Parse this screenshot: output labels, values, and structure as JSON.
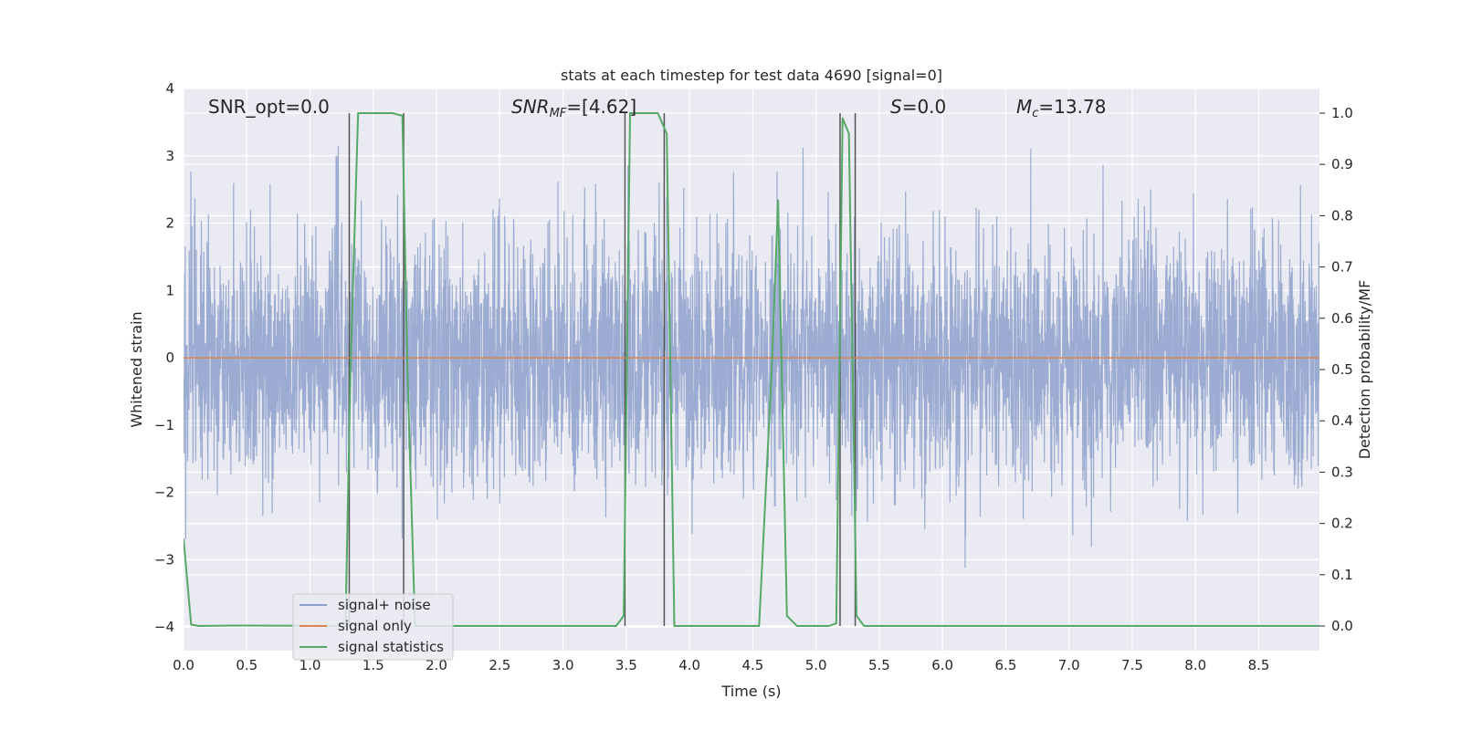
{
  "chart_data": {
    "type": "line",
    "title": "stats at each timestep for test data 4690 [signal=0]",
    "xlabel": "Time (s)",
    "ylabel": "Whitened strain",
    "y2label": "Detection probability/MF",
    "xlim": [
      0.0,
      8.98
    ],
    "ylim": [
      -4.35,
      4.0
    ],
    "y2lim": [
      -0.048,
      1.048
    ],
    "x_ticks": [
      "0.0",
      "0.5",
      "1.0",
      "1.5",
      "2.0",
      "2.5",
      "3.0",
      "3.5",
      "4.0",
      "4.5",
      "5.0",
      "5.5",
      "6.0",
      "6.5",
      "7.0",
      "7.5",
      "8.0",
      "8.5"
    ],
    "y_ticks": [
      "4",
      "3",
      "2",
      "1",
      "0",
      "−1",
      "−2",
      "−3",
      "−4"
    ],
    "y2_ticks": [
      "1.0",
      "0.9",
      "0.8",
      "0.7",
      "0.6",
      "0.5",
      "0.4",
      "0.3",
      "0.2",
      "0.1",
      "0.0"
    ],
    "grid": true,
    "legend_position": "lower-left",
    "annotations": {
      "snr_opt": "SNR_opt=0.0",
      "snr_mf_main": "SNR",
      "snr_mf_sub": "MF",
      "snr_mf_value": "=[4.62]",
      "s_italic": "S",
      "s_value": "=0.0",
      "mc_main": "M",
      "mc_sub": "c",
      "mc_value": "=13.78"
    },
    "series": [
      {
        "name": "signal+ noise",
        "color": "#8da0cb",
        "description_stats": {
          "envelope_typ": 1.7,
          "peak_max": 3.8,
          "trough_min": -4.0
        }
      },
      {
        "name": "signal only",
        "color": "#dd8452",
        "x": [
          0.0,
          8.98
        ],
        "y": [
          0.0,
          0.0
        ]
      },
      {
        "name": "signal statistics",
        "color": "#55a868",
        "axis": "right",
        "x": [
          0.0,
          0.06,
          0.12,
          0.45,
          1.28,
          1.32,
          1.38,
          1.65,
          1.73,
          1.77,
          1.83,
          3.42,
          3.48,
          3.53,
          3.58,
          3.75,
          3.82,
          3.88,
          3.95,
          4.55,
          4.65,
          4.7,
          4.77,
          4.85,
          5.1,
          5.16,
          5.21,
          5.26,
          5.32,
          5.38,
          5.45,
          8.98
        ],
        "y": [
          0.17,
          0.003,
          0.0,
          0.001,
          0.0,
          0.5,
          1.0,
          1.0,
          0.995,
          0.5,
          0.0,
          0.0,
          0.02,
          1.0,
          1.0,
          1.0,
          0.96,
          0.0,
          0.0,
          0.0,
          0.5,
          0.83,
          0.02,
          0.0,
          0.0,
          0.005,
          0.99,
          0.96,
          0.02,
          0.0,
          0.0,
          0.0
        ]
      }
    ],
    "vertical_markers": [
      1.31,
      1.74,
      3.49,
      3.8,
      5.19,
      5.31
    ],
    "legend": [
      {
        "label": "signal+ noise",
        "color": "#8da0cb"
      },
      {
        "label": "signal only",
        "color": "#dd8452"
      },
      {
        "label": "signal statistics",
        "color": "#55a868"
      }
    ]
  }
}
